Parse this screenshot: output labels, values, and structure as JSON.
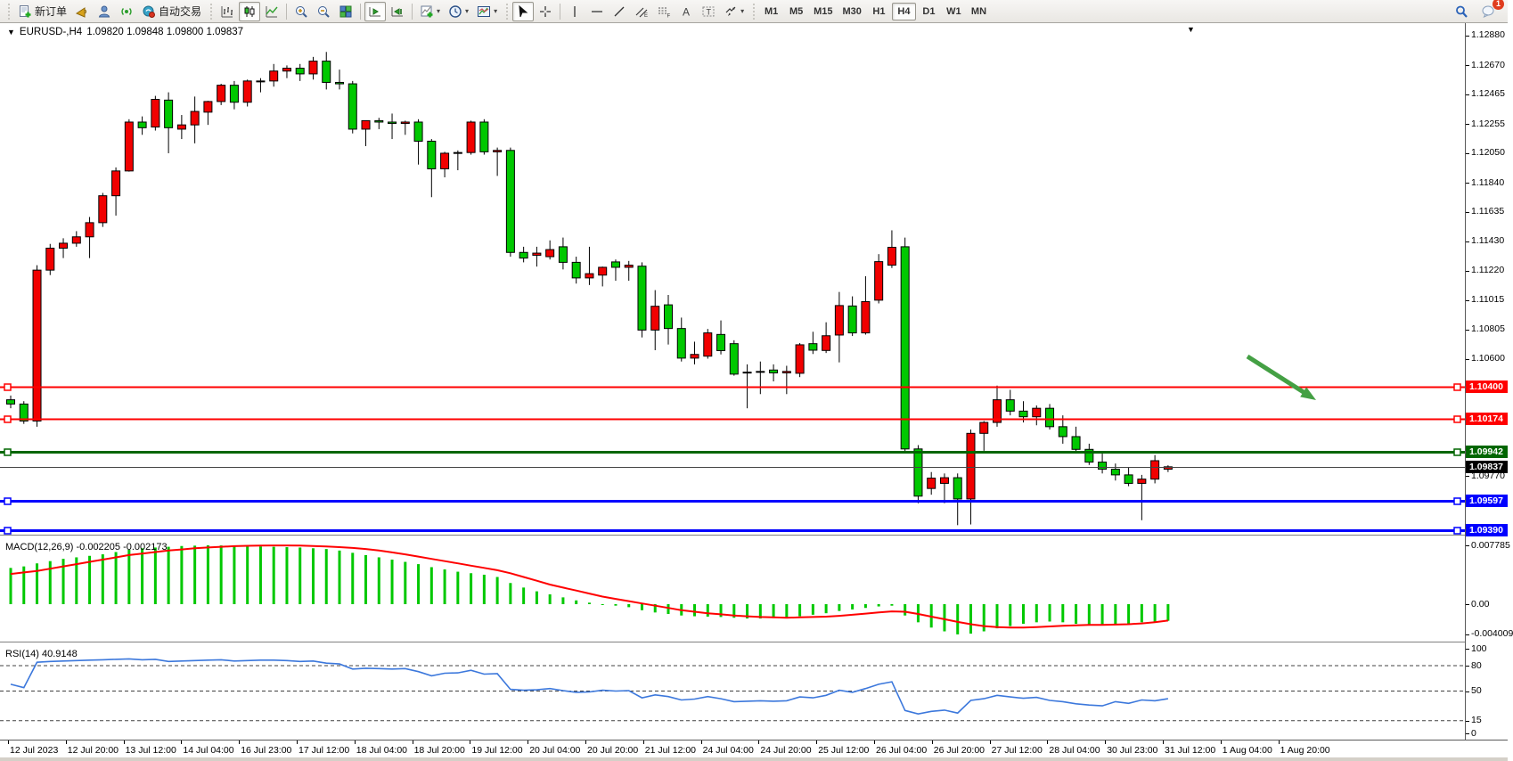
{
  "toolbar": {
    "new_order_label": "新订单",
    "autotrade_label": "自动交易",
    "timeframes": [
      "M1",
      "M5",
      "M15",
      "M30",
      "H1",
      "H4",
      "D1",
      "W1",
      "MN"
    ],
    "active_timeframe": "H4",
    "notification_count": "1"
  },
  "chart": {
    "title": {
      "symbol_period": "EURUSD-,H4",
      "ohlc_text": "1.09820 1.09848 1.09800 1.09837"
    }
  },
  "chart_data": {
    "type": "candlestick",
    "symbol": "EURUSD-",
    "timeframe": "H4",
    "current": {
      "open": 1.0982,
      "high": 1.09848,
      "low": 1.098,
      "close": 1.09837
    },
    "colors": {
      "bull": "#f10000",
      "bear": "#00c800",
      "outline": "#000000"
    },
    "price_axis": {
      "range_top": 1.12968,
      "range_bottom": 1.09358,
      "ticks": [
        1.1288,
        1.1267,
        1.12465,
        1.12255,
        1.1205,
        1.1184,
        1.11635,
        1.1143,
        1.1122,
        1.11015,
        1.10805,
        1.106,
        1.0977
      ]
    },
    "horizontal_lines": [
      {
        "name": "resistance-line-1",
        "price": 1.104,
        "color": "#ff0000",
        "width": 2,
        "handles": true
      },
      {
        "name": "resistance-line-2",
        "price": 1.10174,
        "color": "#ff0000",
        "width": 2,
        "handles": true
      },
      {
        "name": "support-line-green",
        "price": 1.09942,
        "color": "#006600",
        "width": 3,
        "handles": true
      },
      {
        "name": "bid-price-line",
        "price": 1.09837,
        "color": "#444444",
        "width": 1,
        "handles": false
      },
      {
        "name": "support-line-blue-1",
        "price": 1.09597,
        "color": "#0000ff",
        "width": 3,
        "handles": true
      },
      {
        "name": "support-line-blue-2",
        "price": 1.0939,
        "color": "#0000ff",
        "width": 3,
        "handles": true
      }
    ],
    "time_labels": [
      "12 Jul 2023",
      "12 Jul 20:00",
      "13 Jul 12:00",
      "14 Jul 04:00",
      "16 Jul 23:00",
      "17 Jul 12:00",
      "18 Jul 04:00",
      "18 Jul 20:00",
      "19 Jul 12:00",
      "20 Jul 04:00",
      "20 Jul 20:00",
      "21 Jul 12:00",
      "24 Jul 04:00",
      "24 Jul 20:00",
      "25 Jul 12:00",
      "26 Jul 04:00",
      "26 Jul 20:00",
      "27 Jul 12:00",
      "28 Jul 04:00",
      "30 Jul 23:00",
      "31 Jul 12:00",
      "1 Aug 04:00",
      "1 Aug 20:00"
    ],
    "bars": [
      [
        1.1031,
        1.1034,
        1.1025,
        1.1028
      ],
      [
        1.1028,
        1.103,
        1.1014,
        1.1016
      ],
      [
        1.1016,
        1.1126,
        1.1012,
        1.11225
      ],
      [
        1.11225,
        1.1141,
        1.1119,
        1.1138
      ],
      [
        1.1138,
        1.1145,
        1.1131,
        1.11415
      ],
      [
        1.11415,
        1.115,
        1.1139,
        1.1146
      ],
      [
        1.1146,
        1.116,
        1.1131,
        1.1156
      ],
      [
        1.1156,
        1.1177,
        1.1153,
        1.1175
      ],
      [
        1.1175,
        1.1195,
        1.1161,
        1.11925
      ],
      [
        1.11925,
        1.1229,
        1.1192,
        1.1227
      ],
      [
        1.1227,
        1.1231,
        1.1218,
        1.1223
      ],
      [
        1.12235,
        1.12455,
        1.1221,
        1.1243
      ],
      [
        1.12425,
        1.1248,
        1.1205,
        1.1223
      ],
      [
        1.1222,
        1.1232,
        1.1215,
        1.1225
      ],
      [
        1.1225,
        1.1245,
        1.1212,
        1.12345
      ],
      [
        1.1234,
        1.1242,
        1.1225,
        1.12415
      ],
      [
        1.12415,
        1.1254,
        1.1239,
        1.1253
      ],
      [
        1.1253,
        1.1256,
        1.1236,
        1.1241
      ],
      [
        1.1241,
        1.1257,
        1.1238,
        1.1256
      ],
      [
        1.12555,
        1.1258,
        1.1248,
        1.1256
      ],
      [
        1.1256,
        1.1268,
        1.1252,
        1.1263
      ],
      [
        1.1263,
        1.1267,
        1.1258,
        1.1265
      ],
      [
        1.1265,
        1.1268,
        1.1256,
        1.1261
      ],
      [
        1.1261,
        1.1273,
        1.1257,
        1.127
      ],
      [
        1.127,
        1.12765,
        1.125,
        1.1255
      ],
      [
        1.1255,
        1.1264,
        1.125,
        1.1254
      ],
      [
        1.1254,
        1.1256,
        1.1219,
        1.1222
      ],
      [
        1.1222,
        1.1228,
        1.121,
        1.1228
      ],
      [
        1.1228,
        1.123,
        1.1222,
        1.1227
      ],
      [
        1.1227,
        1.1233,
        1.1215,
        1.1226
      ],
      [
        1.1226,
        1.1228,
        1.1218,
        1.1227
      ],
      [
        1.1227,
        1.1229,
        1.1197,
        1.12135
      ],
      [
        1.12135,
        1.1215,
        1.1174,
        1.1194
      ],
      [
        1.1194,
        1.1206,
        1.1188,
        1.1205
      ],
      [
        1.1205,
        1.1207,
        1.1193,
        1.12055
      ],
      [
        1.12055,
        1.1228,
        1.1204,
        1.1227
      ],
      [
        1.1227,
        1.1229,
        1.1204,
        1.1206
      ],
      [
        1.1206,
        1.1209,
        1.1189,
        1.1207
      ],
      [
        1.1207,
        1.1209,
        1.1132,
        1.1135
      ],
      [
        1.1135,
        1.1139,
        1.1128,
        1.1131
      ],
      [
        1.1133,
        1.1139,
        1.1125,
        1.11345
      ],
      [
        1.1132,
        1.11435,
        1.113,
        1.1137
      ],
      [
        1.1139,
        1.11455,
        1.1123,
        1.1128
      ],
      [
        1.1128,
        1.1132,
        1.1113,
        1.1117
      ],
      [
        1.1117,
        1.1139,
        1.1112,
        1.112
      ],
      [
        1.1119,
        1.1125,
        1.1111,
        1.11245
      ],
      [
        1.11283,
        1.113,
        1.1115,
        1.11245
      ],
      [
        1.11245,
        1.1129,
        1.1115,
        1.1126
      ],
      [
        1.11253,
        1.1128,
        1.1075,
        1.10802
      ],
      [
        1.10802,
        1.11084,
        1.1066,
        1.1097
      ],
      [
        1.1098,
        1.1105,
        1.107,
        1.10813
      ],
      [
        1.10813,
        1.1089,
        1.1058,
        1.10604
      ],
      [
        1.10604,
        1.1072,
        1.1056,
        1.1063
      ],
      [
        1.10618,
        1.1081,
        1.106,
        1.10782
      ],
      [
        1.10771,
        1.1087,
        1.1063,
        1.10657
      ],
      [
        1.10706,
        1.1073,
        1.1048,
        1.10491
      ],
      [
        1.105,
        1.1056,
        1.1025,
        1.10505
      ],
      [
        1.10505,
        1.1058,
        1.1035,
        1.1051
      ],
      [
        1.1052,
        1.1056,
        1.1044,
        1.105
      ],
      [
        1.105,
        1.1055,
        1.1035,
        1.1051
      ],
      [
        1.10497,
        1.1071,
        1.1047,
        1.10698
      ],
      [
        1.10706,
        1.1079,
        1.10633,
        1.1066
      ],
      [
        1.10658,
        1.10857,
        1.1064,
        1.10762
      ],
      [
        1.10767,
        1.11071,
        1.10574,
        1.10975
      ],
      [
        1.10972,
        1.1104,
        1.1076,
        1.10782
      ],
      [
        1.10782,
        1.11182,
        1.1077,
        1.11003
      ],
      [
        1.11013,
        1.11338,
        1.1099,
        1.11285
      ],
      [
        1.1126,
        1.11506,
        1.1124,
        1.11386
      ],
      [
        1.1139,
        1.11455,
        1.0993,
        1.09963
      ],
      [
        1.09963,
        1.0999,
        1.0958,
        1.0963
      ],
      [
        1.09684,
        1.098,
        1.0964,
        1.09757
      ],
      [
        1.0972,
        1.0979,
        1.0958,
        1.0976
      ],
      [
        1.0976,
        1.0979,
        1.09425,
        1.0961
      ],
      [
        1.0961,
        1.101,
        1.0943,
        1.10073
      ],
      [
        1.10073,
        1.1016,
        1.0995,
        1.1015
      ],
      [
        1.1015,
        1.1041,
        1.1012,
        1.1031
      ],
      [
        1.1031,
        1.1038,
        1.102,
        1.1023
      ],
      [
        1.1023,
        1.103,
        1.1015,
        1.1019
      ],
      [
        1.1019,
        1.1027,
        1.1013,
        1.1025
      ],
      [
        1.1025,
        1.1028,
        1.101,
        1.1012
      ],
      [
        1.1012,
        1.102,
        1.1,
        1.1005
      ],
      [
        1.1005,
        1.1012,
        1.0993,
        1.0996
      ],
      [
        1.0996,
        1.1,
        1.0985,
        1.0987
      ],
      [
        1.0987,
        1.0993,
        1.0979,
        1.0982
      ],
      [
        1.0982,
        1.0986,
        1.0974,
        1.0978
      ],
      [
        1.0978,
        1.0983,
        1.097,
        1.0972
      ],
      [
        1.0972,
        1.0978,
        1.0946,
        1.0975
      ],
      [
        1.0975,
        1.0992,
        1.0972,
        1.0988
      ],
      [
        1.0982,
        1.09848,
        1.098,
        1.09837
      ]
    ],
    "indicators": {
      "macd": {
        "label": "MACD(12,26,9)",
        "value_main": "-0.002205",
        "value_signal": "-0.002173",
        "axis_ticks": [
          {
            "v": 0.007785,
            "label": "0.007785"
          },
          {
            "v": 0,
            "label": "0.00"
          },
          {
            "v": -0.004009,
            "label": "-0.004009"
          }
        ],
        "colors": {
          "histogram": "#00c800",
          "signal": "#ff0000"
        },
        "histogram": [
          0.0048,
          0.005,
          0.0054,
          0.0057,
          0.006,
          0.0062,
          0.0064,
          0.0066,
          0.0069,
          0.0072,
          0.0074,
          0.0075,
          0.0076,
          0.0077,
          0.00775,
          0.0078,
          0.00778,
          0.00775,
          0.0077,
          0.00765,
          0.0076,
          0.00755,
          0.0075,
          0.0074,
          0.0073,
          0.0071,
          0.0068,
          0.0065,
          0.0062,
          0.0059,
          0.0056,
          0.0053,
          0.0049,
          0.0046,
          0.0043,
          0.0041,
          0.0039,
          0.0036,
          0.0028,
          0.0022,
          0.0017,
          0.0013,
          0.0009,
          0.0005,
          0.0002,
          0.0,
          -0.0002,
          -0.0004,
          -0.0008,
          -0.0011,
          -0.0013,
          -0.0015,
          -0.0016,
          -0.00165,
          -0.0017,
          -0.0018,
          -0.0019,
          -0.0019,
          -0.00185,
          -0.0018,
          -0.0016,
          -0.0014,
          -0.0012,
          -0.0009,
          -0.0007,
          -0.0005,
          -0.0003,
          -0.0002,
          -0.0015,
          -0.0024,
          -0.0031,
          -0.0036,
          -0.004,
          -0.0039,
          -0.0036,
          -0.0032,
          -0.0029,
          -0.0026,
          -0.0024,
          -0.0023,
          -0.0024,
          -0.0026,
          -0.0027,
          -0.0028,
          -0.0027,
          -0.0026,
          -0.0024,
          -0.0023,
          -0.002205
        ],
        "signal": [
          0.004,
          0.0042,
          0.0044,
          0.0047,
          0.005,
          0.0053,
          0.0056,
          0.0059,
          0.0062,
          0.0065,
          0.0067,
          0.0069,
          0.0071,
          0.00725,
          0.0074,
          0.0075,
          0.0076,
          0.00768,
          0.00773,
          0.00776,
          0.00778,
          0.00778,
          0.00775,
          0.0077,
          0.00765,
          0.00755,
          0.00745,
          0.0073,
          0.0071,
          0.00685,
          0.0066,
          0.0063,
          0.006,
          0.0057,
          0.0054,
          0.0051,
          0.0048,
          0.0045,
          0.0041,
          0.0036,
          0.0031,
          0.0026,
          0.0022,
          0.0018,
          0.0014,
          0.001,
          0.0007,
          0.0004,
          0.0001,
          -0.0002,
          -0.0005,
          -0.0008,
          -0.001,
          -0.0012,
          -0.00135,
          -0.0015,
          -0.0016,
          -0.0017,
          -0.00175,
          -0.0018,
          -0.00175,
          -0.0017,
          -0.00165,
          -0.00155,
          -0.0014,
          -0.00125,
          -0.0011,
          -0.00095,
          -0.001,
          -0.0013,
          -0.00165,
          -0.002,
          -0.00235,
          -0.00265,
          -0.0029,
          -0.00305,
          -0.0031,
          -0.0031,
          -0.00305,
          -0.00295,
          -0.00285,
          -0.0028,
          -0.00275,
          -0.00275,
          -0.0027,
          -0.00265,
          -0.00255,
          -0.0024,
          -0.002173
        ]
      },
      "rsi": {
        "label": "RSI(14)",
        "value": "40.9148",
        "color": "#3c78dc",
        "levels": [
          80,
          50,
          15
        ],
        "axis_ticks": [
          100,
          80,
          50,
          15,
          0
        ],
        "series": [
          58,
          54,
          84,
          85,
          85.5,
          86,
          86.5,
          87,
          87.5,
          88,
          87,
          87.5,
          85,
          85.5,
          86,
          86.5,
          87,
          85.5,
          86,
          86.5,
          86.5,
          86,
          85,
          85.5,
          83,
          82,
          76,
          77,
          76.5,
          76,
          76.5,
          73,
          68,
          71,
          71.5,
          74.5,
          70,
          70.5,
          52,
          51,
          51.5,
          53,
          50.5,
          48.5,
          49,
          51,
          50,
          50.5,
          42,
          45.5,
          43.5,
          39.5,
          40.5,
          43.5,
          41,
          37.5,
          38,
          38.5,
          38,
          38.5,
          43,
          42,
          45,
          51,
          48.5,
          53,
          58,
          61,
          27,
          23,
          26,
          27.5,
          24,
          39,
          41,
          45,
          43,
          41.5,
          42.5,
          39,
          37.5,
          35,
          33.5,
          32.5,
          37.5,
          35.5,
          39.5,
          38.5,
          40.9148
        ]
      }
    },
    "annotation": {
      "type": "arrow",
      "from_xy": [
        1400,
        374
      ],
      "to_xy": [
        1477,
        423
      ],
      "color": "#44a044"
    }
  }
}
